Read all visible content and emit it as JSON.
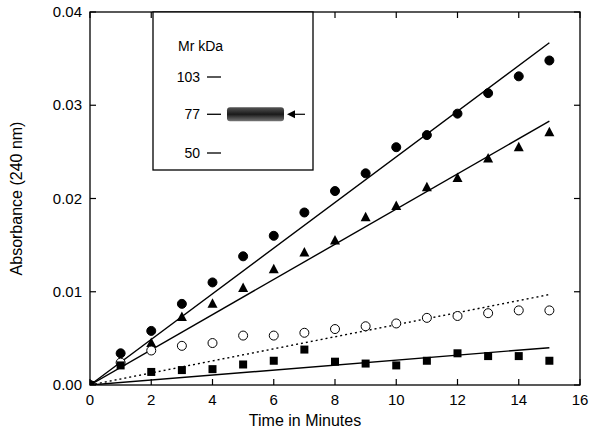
{
  "chart_data": {
    "type": "scatter",
    "x_label": "Time in Minutes",
    "y_label": "Absorbance (240 nm)",
    "x": [
      0,
      1,
      2,
      3,
      4,
      5,
      6,
      7,
      8,
      9,
      10,
      11,
      12,
      13,
      14,
      15
    ],
    "xlim": [
      0,
      16
    ],
    "xticks": [
      0,
      2,
      4,
      6,
      8,
      10,
      12,
      14,
      16
    ],
    "ylim": [
      0,
      0.04
    ],
    "yticks": [
      {
        "value": 0,
        "label": "0.00"
      },
      {
        "value": 0.01,
        "label": "0.01"
      },
      {
        "value": 0.02,
        "label": "0.02"
      },
      {
        "value": 0.03,
        "label": "0.03"
      },
      {
        "value": 0.04,
        "label": "0.04"
      }
    ],
    "grid": false,
    "series": [
      {
        "type": "scatter",
        "marker": "filled-circle",
        "color": "#000000",
        "values": [
          0,
          0.0034,
          0.0058,
          0.0087,
          0.011,
          0.0138,
          0.016,
          0.0185,
          0.0208,
          0.0227,
          0.0255,
          0.0268,
          0.0291,
          0.0313,
          0.0331,
          0.0348
        ]
      },
      {
        "type": "scatter",
        "marker": "filled-triangle",
        "color": "#000000",
        "values": [
          0,
          0.0025,
          0.0045,
          0.0073,
          0.0087,
          0.0104,
          0.0124,
          0.0142,
          0.0155,
          0.018,
          0.0192,
          0.0212,
          0.0222,
          0.0243,
          0.0255,
          0.0271
        ]
      },
      {
        "type": "scatter",
        "marker": "open-circle",
        "color": "#000000",
        "values": [
          0,
          0.0024,
          0.0037,
          0.0042,
          0.0045,
          0.0053,
          0.0053,
          0.0056,
          0.006,
          0.0063,
          0.0066,
          0.0072,
          0.0074,
          0.0077,
          0.008,
          0.008
        ]
      },
      {
        "type": "scatter",
        "marker": "filled-square",
        "color": "#000000",
        "values": [
          0,
          0.0021,
          0.0014,
          0.0016,
          0.0017,
          0.0022,
          0.0026,
          0.0038,
          0.0025,
          0.0023,
          0.0021,
          0.0026,
          0.0034,
          0.0031,
          0.0031,
          0.0026
        ]
      },
      {
        "type": "line",
        "line_style": "solid",
        "color": "#000000",
        "x": [
          0,
          15
        ],
        "values": [
          0,
          0.0367
        ]
      },
      {
        "type": "line",
        "line_style": "solid",
        "color": "#000000",
        "x": [
          0,
          15
        ],
        "values": [
          0,
          0.0283
        ]
      },
      {
        "type": "line",
        "line_style": "dotted",
        "color": "#000000",
        "x": [
          0,
          15
        ],
        "values": [
          0,
          0.0097
        ]
      },
      {
        "type": "line",
        "line_style": "solid",
        "color": "#000000",
        "x": [
          0,
          15
        ],
        "values": [
          0,
          0.004
        ]
      }
    ],
    "inset": {
      "title": "Mr kDa",
      "markers": [
        103,
        77,
        50
      ],
      "band": 77
    }
  }
}
